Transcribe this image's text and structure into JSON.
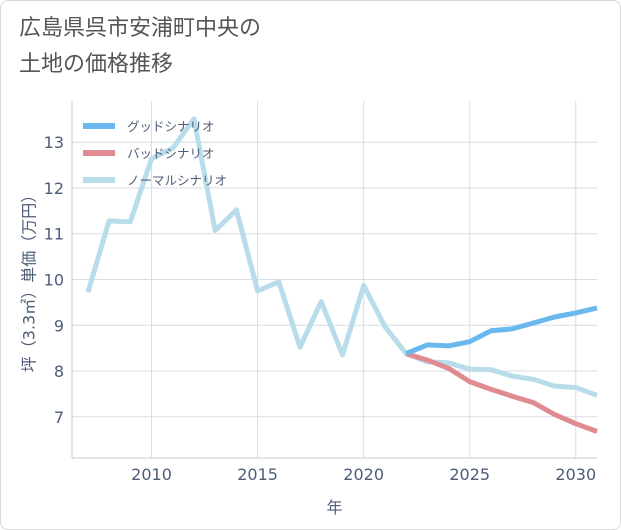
{
  "title_lines": [
    "広島県呉市安浦町中央の",
    "土地の価格推移"
  ],
  "chart_data": {
    "type": "line",
    "xlabel": "年",
    "ylabel": "坪（3.3㎡）単価（万円）",
    "xlim": [
      2006.25,
      2031
    ],
    "ylim": [
      6.1,
      13.9
    ],
    "x_ticks": [
      2010,
      2015,
      2020,
      2025,
      2030
    ],
    "y_ticks": [
      7,
      8,
      9,
      10,
      11,
      12,
      13
    ],
    "grid": true,
    "legend_position": "top-left",
    "series": [
      {
        "name": "グッドシナリオ",
        "color": "#6bb8ee",
        "x": [
          2022,
          2023,
          2024,
          2025,
          2026,
          2027,
          2028,
          2029,
          2030,
          2031
        ],
        "y": [
          8.38,
          8.57,
          8.55,
          8.64,
          8.88,
          8.92,
          9.05,
          9.18,
          9.27,
          9.38
        ]
      },
      {
        "name": "バッドシナリオ",
        "color": "#e08a92",
        "x": [
          2022,
          2023,
          2024,
          2025,
          2026,
          2027,
          2028,
          2029,
          2030,
          2031
        ],
        "y": [
          8.38,
          8.24,
          8.06,
          7.77,
          7.6,
          7.45,
          7.31,
          7.05,
          6.85,
          6.68
        ]
      },
      {
        "name": "ノーマルシナリオ",
        "color": "#b9dceb",
        "x": [
          2007,
          2008,
          2009,
          2010,
          2011,
          2012,
          2013,
          2014,
          2015,
          2016,
          2017,
          2018,
          2019,
          2020,
          2021,
          2022,
          2023,
          2024,
          2025,
          2026,
          2027,
          2028,
          2029,
          2030,
          2031
        ],
        "y": [
          9.72,
          11.28,
          11.26,
          12.64,
          12.87,
          13.51,
          11.07,
          11.52,
          9.75,
          9.95,
          8.52,
          9.52,
          8.35,
          9.87,
          8.97,
          8.38,
          8.2,
          8.18,
          8.04,
          8.03,
          7.89,
          7.82,
          7.67,
          7.64,
          7.47
        ]
      }
    ]
  }
}
